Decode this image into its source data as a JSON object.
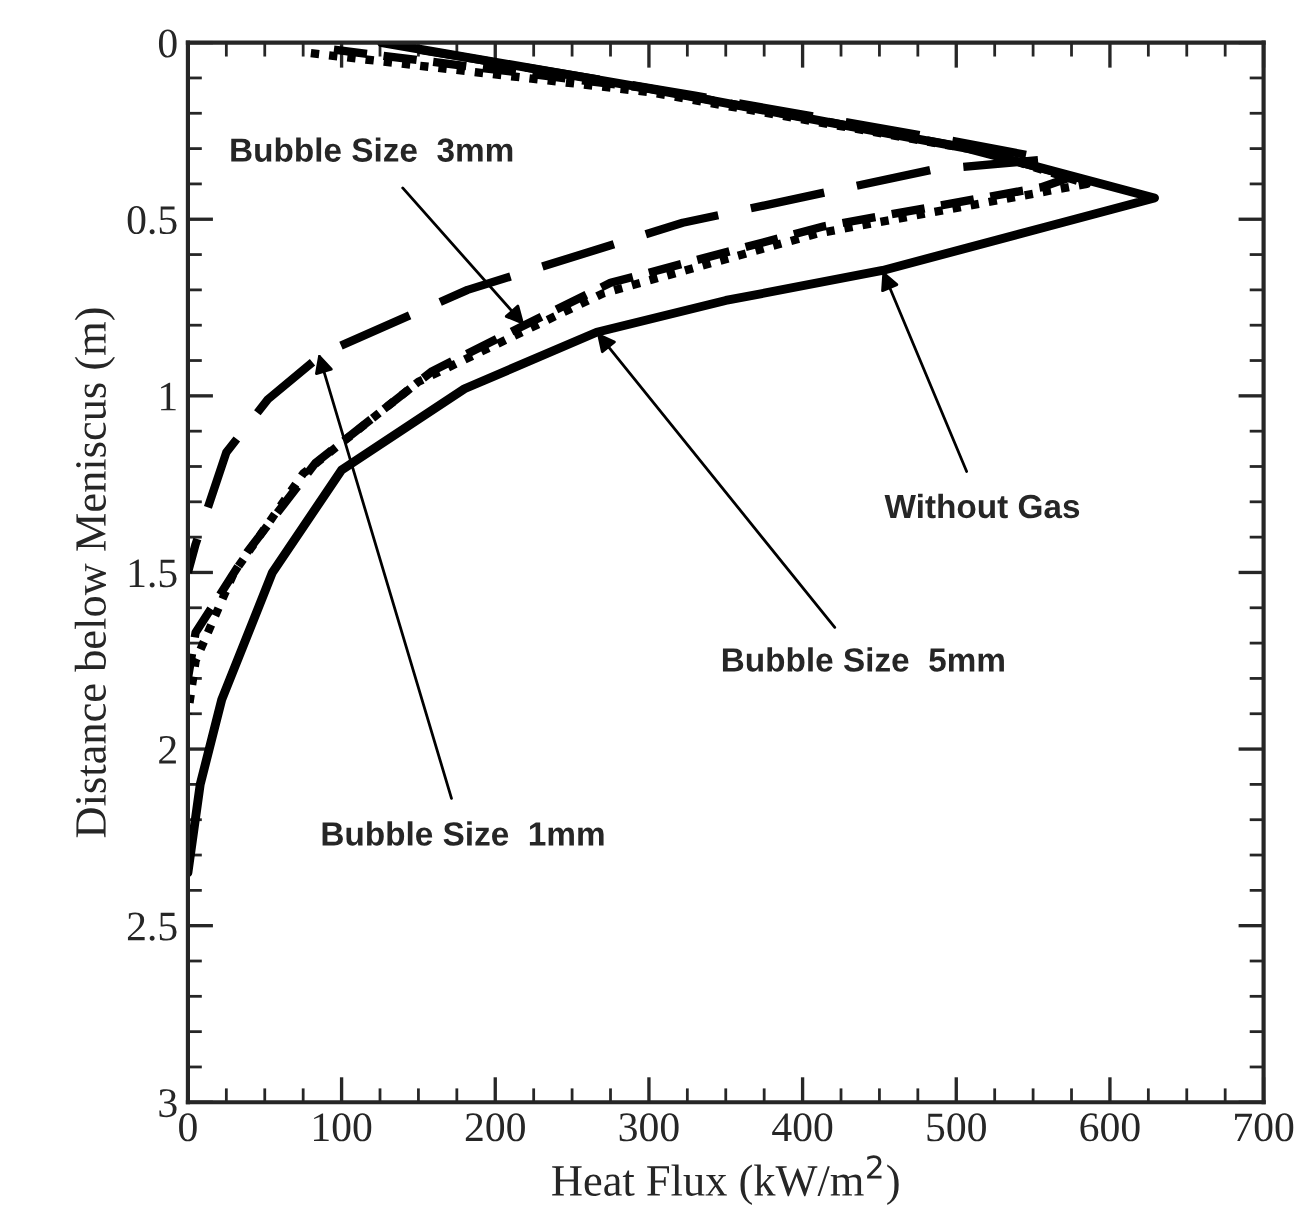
{
  "chart_data": {
    "type": "line",
    "xlabel": "Heat Flux (kW/m$^{2}$)",
    "ylabel": "Distance below Meniscus (m)",
    "xlim": [
      0,
      700
    ],
    "xticks": [
      0,
      100,
      200,
      300,
      400,
      500,
      600,
      700
    ],
    "ylim": [
      3,
      0
    ],
    "yticks": [
      0,
      0.5,
      1,
      1.5,
      2,
      2.5,
      3
    ],
    "grid": false,
    "legend": false,
    "series": [
      {
        "color": "#000000",
        "line_style": "solid",
        "x": [
          126,
          300,
          508,
          629,
          560,
          452,
          350,
          266,
          180,
          100,
          55,
          22,
          8,
          0
        ],
        "values": [
          0.0,
          0.13,
          0.3,
          0.44,
          0.52,
          0.645,
          0.73,
          0.82,
          0.98,
          1.21,
          1.5,
          1.86,
          2.1,
          2.35
        ]
      },
      {
        "color": "#000000",
        "line_style": "dashed",
        "x": [
          95,
          300,
          510,
          575,
          555,
          414,
          275,
          219,
          159,
          83,
          39,
          5,
          0
        ],
        "values": [
          0.02,
          0.13,
          0.3,
          0.38,
          0.41,
          0.52,
          0.68,
          0.8,
          0.93,
          1.19,
          1.44,
          1.67,
          1.8
        ]
      },
      {
        "color": "#000000",
        "line_style": "long-dash",
        "x": [
          150,
          330,
          500,
          560,
          484,
          322,
          182,
          88,
          52,
          25,
          5,
          0
        ],
        "values": [
          0.02,
          0.15,
          0.28,
          0.33,
          0.36,
          0.51,
          0.7,
          0.88,
          1.01,
          1.16,
          1.42,
          1.5
        ]
      },
      {
        "color": "#000000",
        "line_style": "dotted",
        "x": [
          80,
          300,
          520,
          585,
          560,
          410,
          270,
          150,
          75,
          30,
          5,
          0
        ],
        "values": [
          0.03,
          0.14,
          0.31,
          0.4,
          0.42,
          0.54,
          0.71,
          0.96,
          1.22,
          1.5,
          1.75,
          1.9
        ]
      }
    ],
    "annotations": [
      {
        "text": "Bubble Size  3mm",
        "x": 219,
        "y": 0.8
      },
      {
        "text": "Without Gas",
        "x": 452,
        "y": 0.645
      },
      {
        "text": "Bubble Size  5mm",
        "x": 266,
        "y": 0.82
      },
      {
        "text": "Bubble Size  1mm",
        "x": 85,
        "y": 0.88
      }
    ]
  }
}
